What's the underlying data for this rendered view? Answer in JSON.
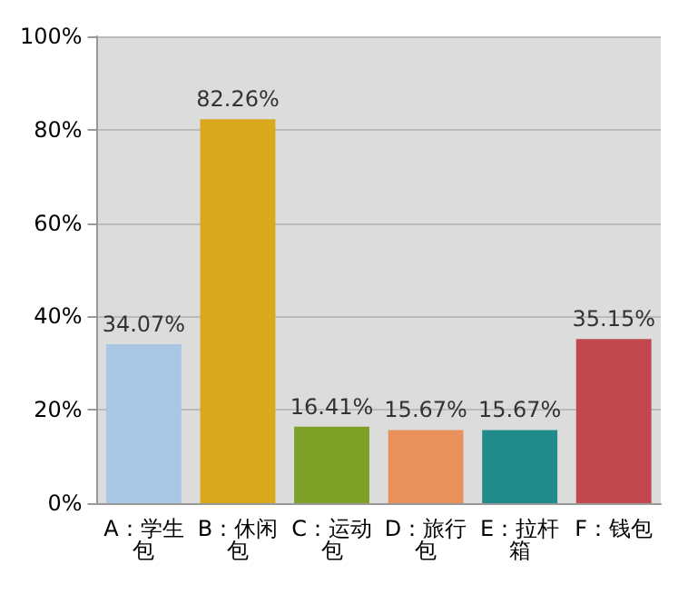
{
  "chart_data": {
    "type": "bar",
    "categories": [
      "A：学生包",
      "B：休闲包",
      "C：运动包",
      "D：旅行包",
      "E：拉杆箱",
      "F：钱包"
    ],
    "values": [
      34.07,
      82.26,
      16.41,
      15.67,
      15.67,
      35.15
    ],
    "colors": [
      "#a9c6e2",
      "#d9a81c",
      "#7fa027",
      "#e8915c",
      "#218b8b",
      "#c0484e"
    ],
    "value_labels": [
      "34.07%",
      "82.26%",
      "16.41%",
      "15.67%",
      "15.67%",
      "35.15%"
    ],
    "ylim": [
      0,
      100
    ],
    "yticks": [
      {
        "value": 0,
        "label": "0%"
      },
      {
        "value": 20,
        "label": "20%"
      },
      {
        "value": 40,
        "label": "40%"
      },
      {
        "value": 60,
        "label": "60%"
      },
      {
        "value": 80,
        "label": "80%"
      },
      {
        "value": 100,
        "label": "100%"
      }
    ],
    "grid": true
  }
}
